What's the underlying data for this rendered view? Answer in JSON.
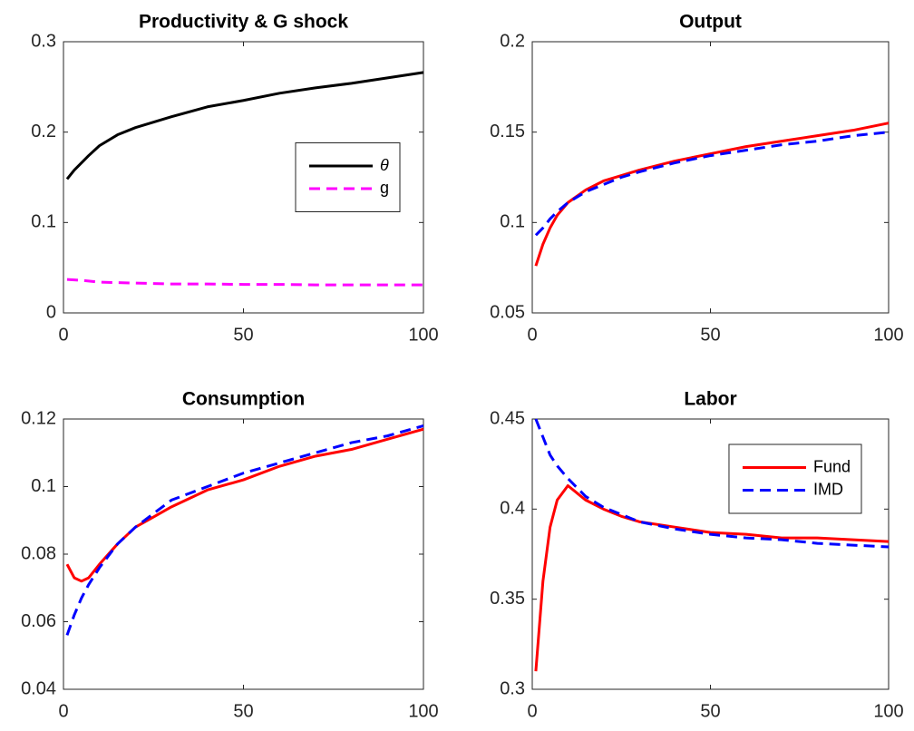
{
  "chart_data": [
    {
      "type": "line",
      "title": "Productivity & G shock",
      "x": [
        1,
        3,
        5,
        7,
        10,
        15,
        20,
        25,
        30,
        40,
        50,
        60,
        70,
        80,
        90,
        100
      ],
      "series": [
        {
          "name": "θ",
          "color": "#000000",
          "style": "solid",
          "values": [
            0.148,
            0.158,
            0.166,
            0.174,
            0.185,
            0.197,
            0.205,
            0.211,
            0.217,
            0.228,
            0.235,
            0.243,
            0.249,
            0.254,
            0.26,
            0.266
          ]
        },
        {
          "name": "g",
          "color": "#ff00ff",
          "style": "dashed",
          "values": [
            0.037,
            0.0365,
            0.036,
            0.0352,
            0.034,
            0.0335,
            0.033,
            0.0325,
            0.032,
            0.032,
            0.0315,
            0.0315,
            0.031,
            0.031,
            0.031,
            0.031
          ]
        }
      ],
      "xlim": [
        0,
        100
      ],
      "xticks": [
        0,
        50,
        100
      ],
      "ylim": [
        0,
        0.3
      ],
      "yticks": [
        0,
        0.1,
        0.2,
        0.3
      ],
      "legend_loc": "east"
    },
    {
      "type": "line",
      "title": "Output",
      "x": [
        1,
        3,
        5,
        7,
        10,
        15,
        20,
        25,
        30,
        40,
        50,
        60,
        70,
        80,
        90,
        100
      ],
      "series": [
        {
          "name": "Fund",
          "color": "#ff0000",
          "style": "solid",
          "values": [
            0.076,
            0.088,
            0.097,
            0.104,
            0.111,
            0.118,
            0.123,
            0.126,
            0.129,
            0.134,
            0.138,
            0.142,
            0.145,
            0.148,
            0.151,
            0.155
          ]
        },
        {
          "name": "IMD",
          "color": "#0000ff",
          "style": "dashed",
          "values": [
            0.093,
            0.097,
            0.102,
            0.106,
            0.111,
            0.117,
            0.121,
            0.125,
            0.128,
            0.133,
            0.137,
            0.14,
            0.143,
            0.145,
            0.148,
            0.15
          ]
        }
      ],
      "xlim": [
        0,
        100
      ],
      "xticks": [
        0,
        50,
        100
      ],
      "ylim": [
        0.05,
        0.2
      ],
      "yticks": [
        0.05,
        0.1,
        0.15,
        0.2
      ]
    },
    {
      "type": "line",
      "title": "Consumption",
      "x": [
        1,
        3,
        5,
        7,
        10,
        15,
        20,
        25,
        30,
        40,
        50,
        60,
        70,
        80,
        90,
        100
      ],
      "series": [
        {
          "name": "Fund",
          "color": "#ff0000",
          "style": "solid",
          "values": [
            0.077,
            0.073,
            0.072,
            0.073,
            0.077,
            0.083,
            0.088,
            0.091,
            0.094,
            0.099,
            0.102,
            0.106,
            0.109,
            0.111,
            0.114,
            0.117
          ]
        },
        {
          "name": "IMD",
          "color": "#0000ff",
          "style": "dashed",
          "values": [
            0.056,
            0.062,
            0.067,
            0.071,
            0.076,
            0.083,
            0.088,
            0.092,
            0.096,
            0.1,
            0.104,
            0.107,
            0.11,
            0.113,
            0.115,
            0.118
          ]
        }
      ],
      "xlim": [
        0,
        100
      ],
      "xticks": [
        0,
        50,
        100
      ],
      "ylim": [
        0.04,
        0.12
      ],
      "yticks": [
        0.04,
        0.06,
        0.08,
        0.1,
        0.12
      ]
    },
    {
      "type": "line",
      "title": "Labor",
      "x": [
        1,
        3,
        5,
        7,
        10,
        15,
        20,
        25,
        30,
        40,
        50,
        60,
        70,
        80,
        90,
        100
      ],
      "series": [
        {
          "name": "Fund",
          "color": "#ff0000",
          "style": "solid",
          "values": [
            0.31,
            0.36,
            0.39,
            0.405,
            0.413,
            0.405,
            0.4,
            0.396,
            0.393,
            0.39,
            0.387,
            0.386,
            0.384,
            0.384,
            0.383,
            0.382
          ]
        },
        {
          "name": "IMD",
          "color": "#0000ff",
          "style": "dashed",
          "values": [
            0.45,
            0.44,
            0.43,
            0.424,
            0.417,
            0.407,
            0.401,
            0.397,
            0.393,
            0.389,
            0.386,
            0.384,
            0.383,
            0.381,
            0.38,
            0.379
          ]
        }
      ],
      "xlim": [
        0,
        100
      ],
      "xticks": [
        0,
        50,
        100
      ],
      "ylim": [
        0.3,
        0.45
      ],
      "yticks": [
        0.3,
        0.35,
        0.4,
        0.45
      ],
      "legend_loc": "northeast"
    }
  ]
}
